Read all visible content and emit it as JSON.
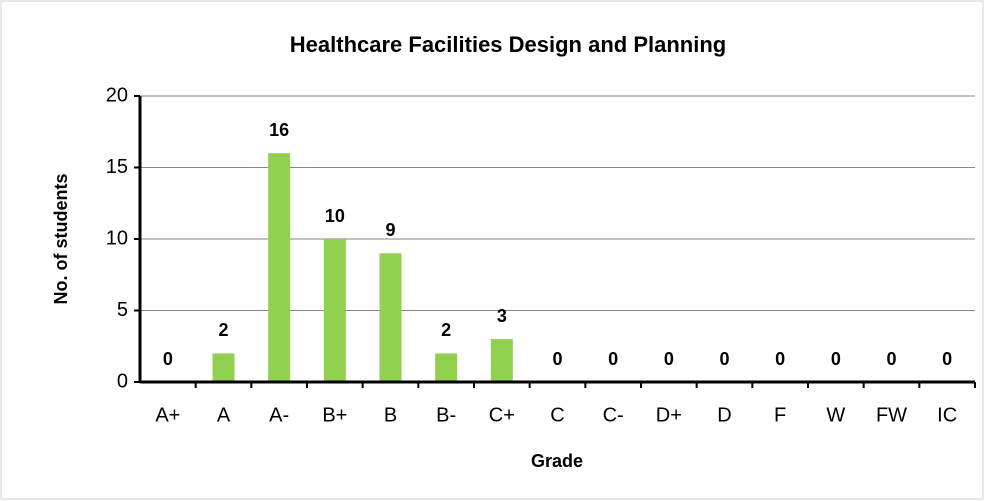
{
  "chart_data": {
    "type": "bar",
    "title": "Healthcare Facilities Design and Planning",
    "x_label": "Grade",
    "y_label": "No. of students",
    "categories": [
      "A+",
      "A",
      "A-",
      "B+",
      "B",
      "B-",
      "C+",
      "C",
      "C-",
      "D+",
      "D",
      "F",
      "W",
      "FW",
      "IC"
    ],
    "values": [
      0,
      2,
      16,
      10,
      9,
      2,
      3,
      0,
      0,
      0,
      0,
      0,
      0,
      0,
      0
    ],
    "color": "#92d050",
    "ylim": [
      0,
      20
    ],
    "yticks": [
      0,
      5,
      10,
      15,
      20
    ],
    "grid": true,
    "show_value_labels": true
  }
}
